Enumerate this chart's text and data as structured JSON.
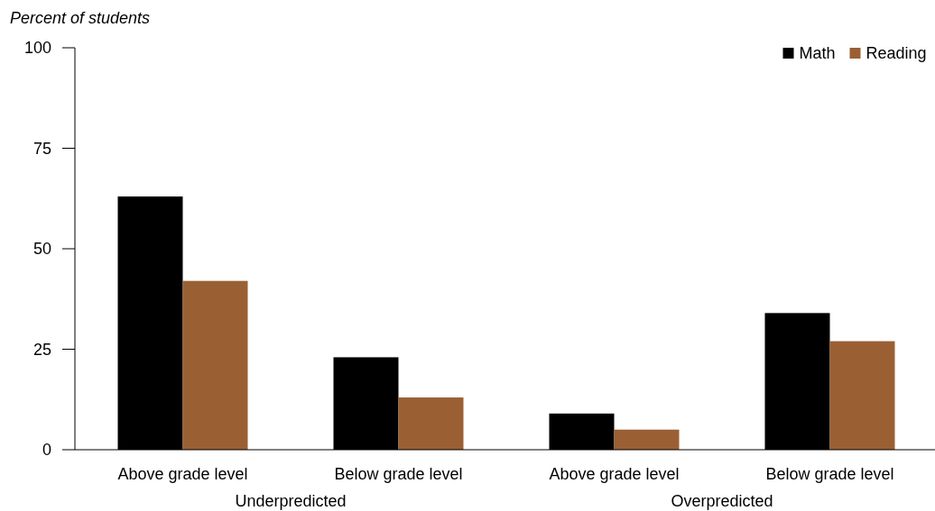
{
  "chart_data": {
    "type": "bar",
    "ylabel": "Percent of students",
    "categories": [
      "Above grade level",
      "Below grade level",
      "Above grade level",
      "Below grade level"
    ],
    "series": [
      {
        "name": "Math",
        "color": "#000000",
        "values": [
          63,
          23,
          9,
          34
        ]
      },
      {
        "name": "Reading",
        "color": "#9a6034",
        "values": [
          42,
          13,
          5,
          27
        ]
      }
    ],
    "ylim": [
      0,
      100
    ],
    "yticks": [
      0,
      25,
      50,
      75,
      100
    ],
    "grid": false,
    "legend": "top right",
    "annotations": [
      "Underpredicted",
      "Overpredicted"
    ]
  }
}
